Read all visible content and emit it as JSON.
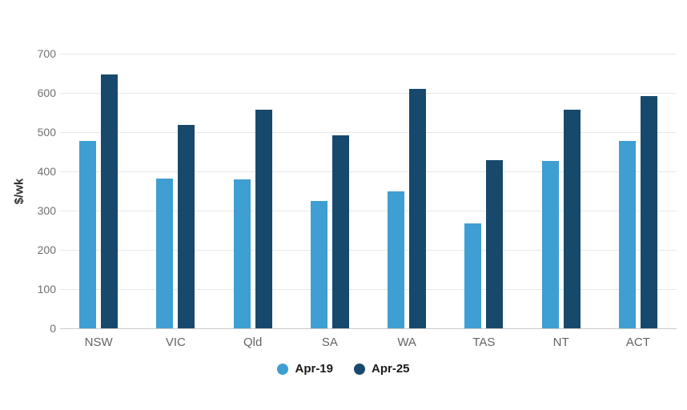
{
  "chart_data": {
    "type": "bar",
    "title": "",
    "xlabel": "",
    "ylabel": "$/wk",
    "categories": [
      "NSW",
      "VIC",
      "Qld",
      "SA",
      "WA",
      "TAS",
      "NT",
      "ACT"
    ],
    "series": [
      {
        "name": "Apr-19",
        "color": "#3f9ed2",
        "values": [
          478,
          382,
          380,
          324,
          348,
          268,
          427,
          478
        ]
      },
      {
        "name": "Apr-25",
        "color": "#17496d",
        "values": [
          647,
          518,
          558,
          492,
          611,
          428,
          558,
          592
        ]
      }
    ],
    "ylim": [
      0,
      700
    ],
    "ytick_step": 100,
    "grid": true,
    "legend_position": "bottom",
    "colors": {
      "gridline": "#e8e8e8",
      "axis_line": "#c9c9c9",
      "tick_label": "#707070",
      "category_label": "#636363",
      "legend_text": "#1b1b1b",
      "background": "#ffffff"
    }
  }
}
